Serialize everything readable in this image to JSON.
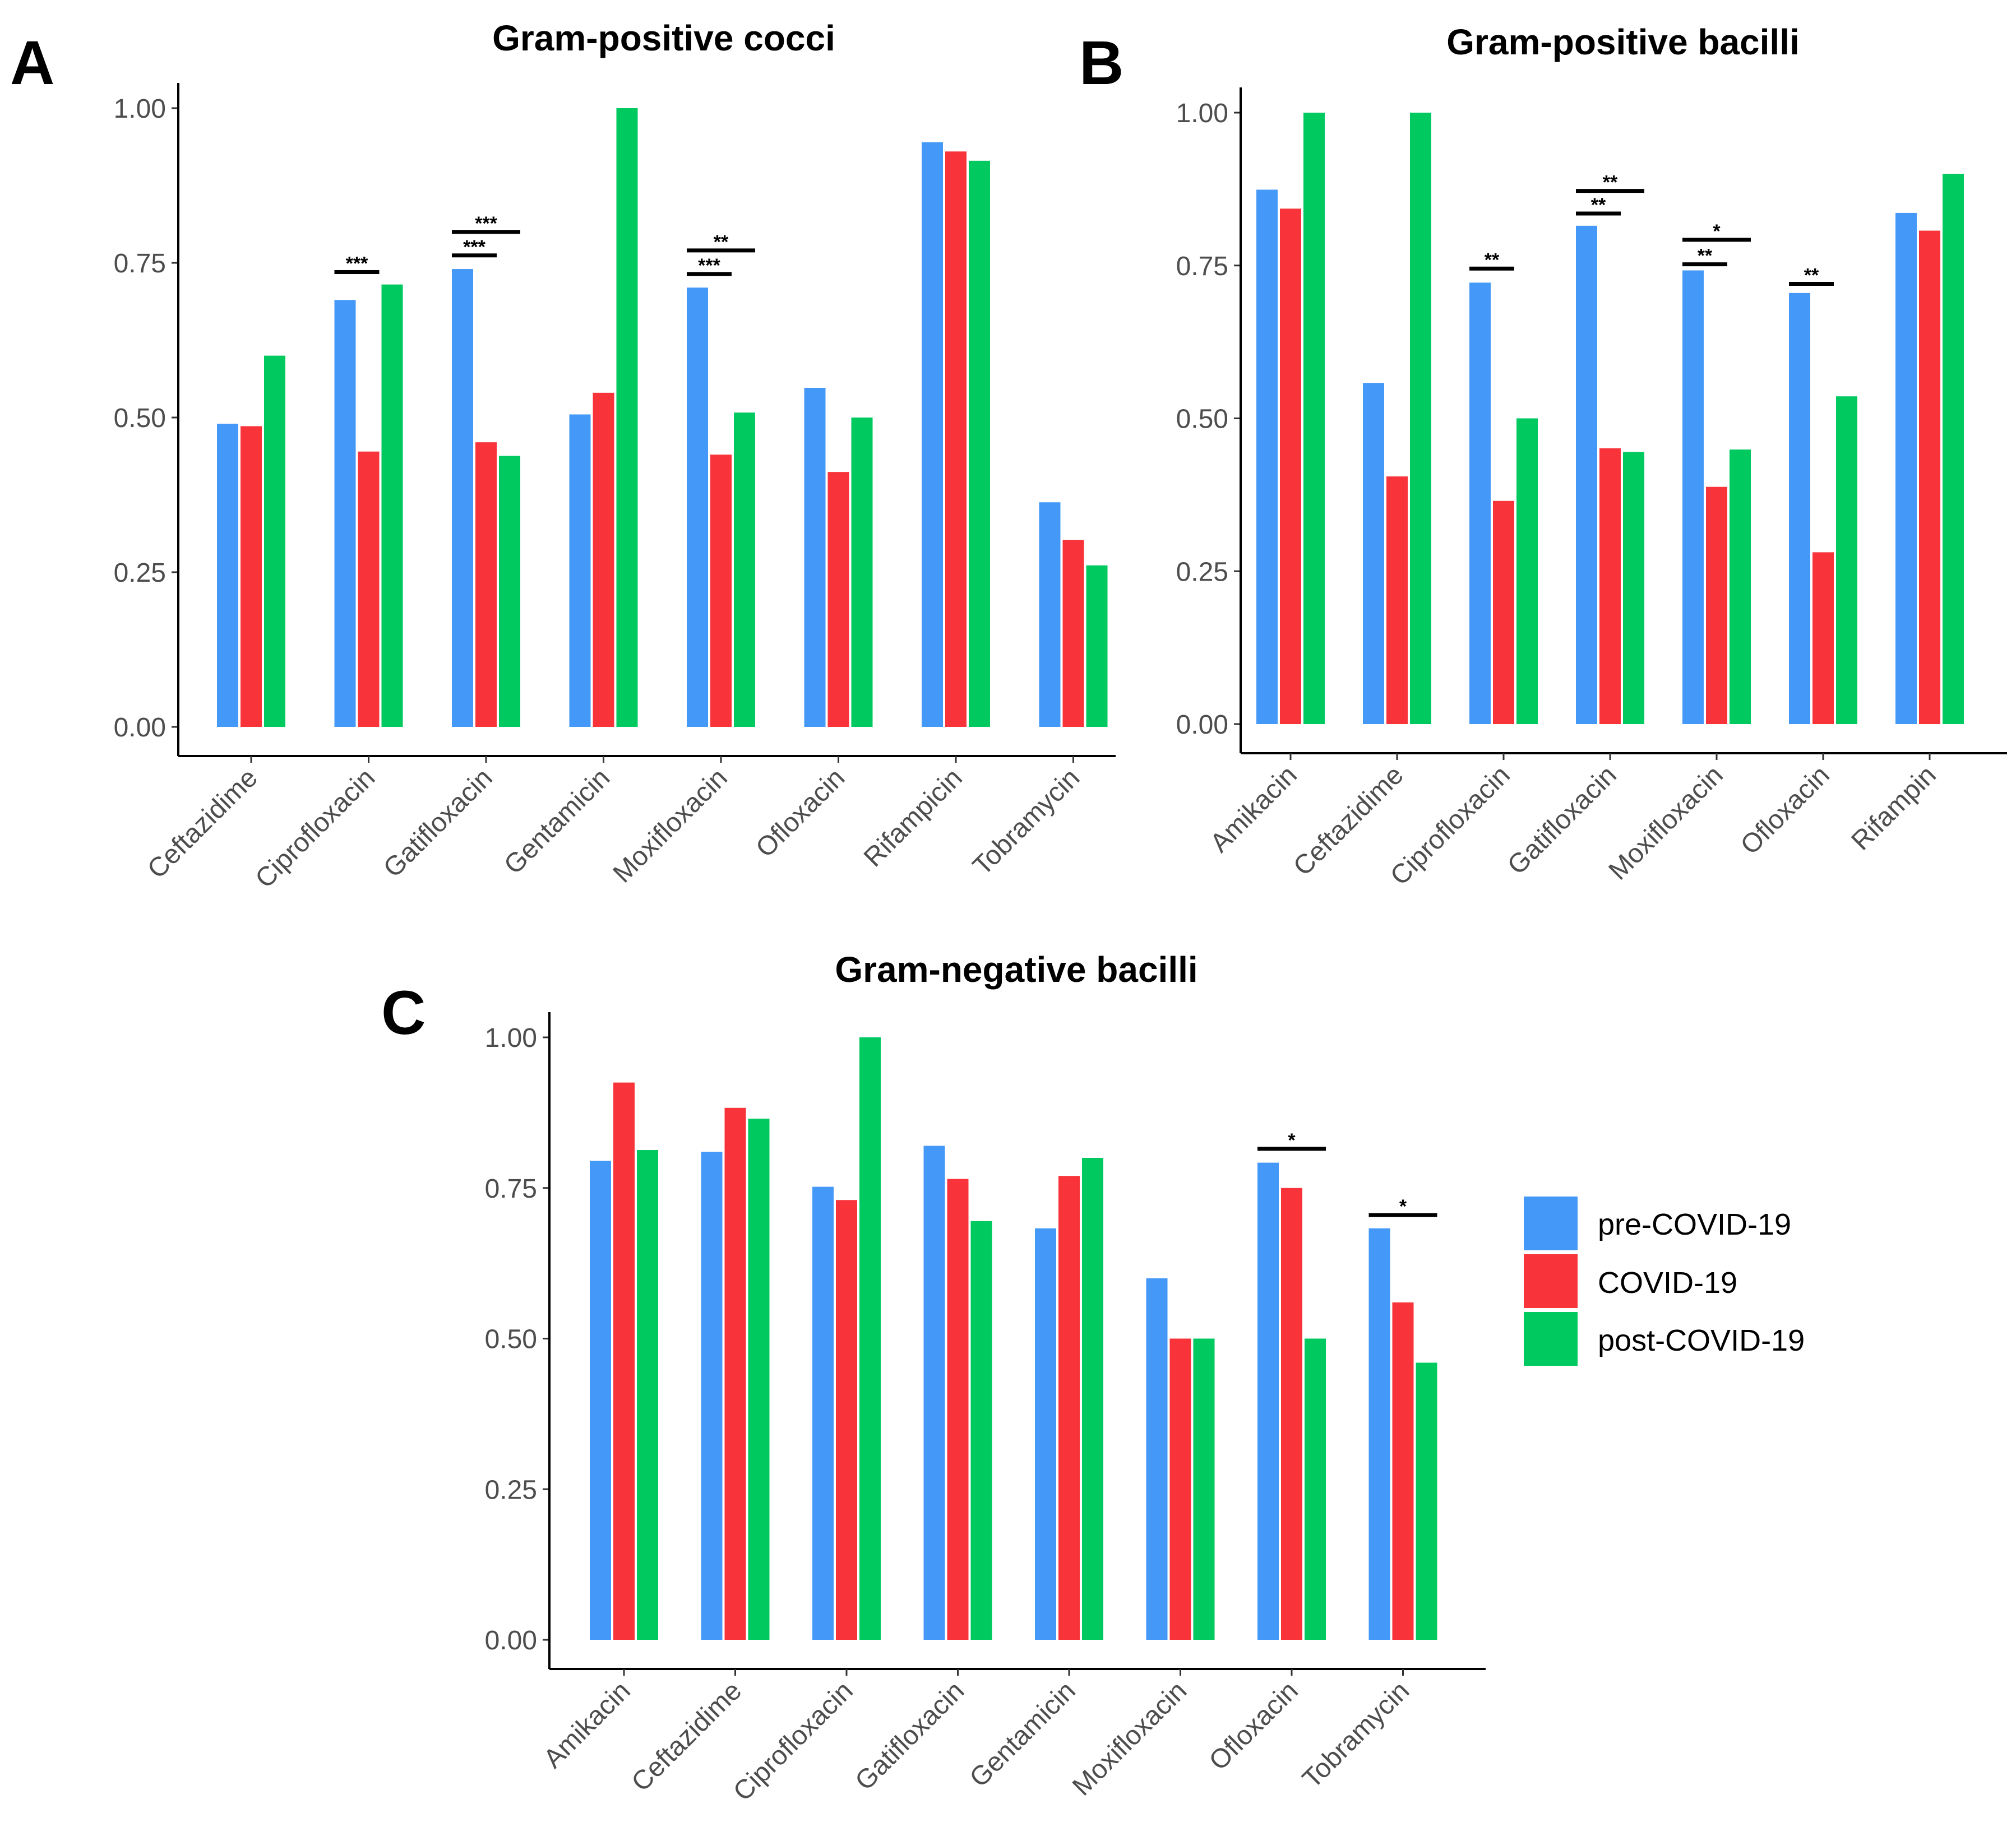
{
  "legend": [
    {
      "label": "pre-COVID-19",
      "color": "#4499F8"
    },
    {
      "label": "COVID-19",
      "color": "#F8333A"
    },
    {
      "label": "post-COVID-19",
      "color": "#00C95F"
    }
  ],
  "chart_data": [
    {
      "type": "bar",
      "panel": "A",
      "title": "Gram-positive cocci",
      "xlabel": "",
      "ylabel": "",
      "ylim": [
        0,
        1
      ],
      "yticks": [
        "0.00",
        "0.25",
        "0.50",
        "0.75",
        "1.00"
      ],
      "ytick_values": [
        0,
        0.25,
        0.5,
        0.75,
        1
      ],
      "categories": [
        "Ceftazidime",
        "Ciprofloxacin",
        "Gatifloxacin",
        "Gentamicin",
        "Moxifloxacin",
        "Ofloxacin",
        "Rifampicin",
        "Tobramycin"
      ],
      "series": [
        {
          "name": "pre-COVID-19",
          "values": [
            0.49,
            0.69,
            0.74,
            0.505,
            0.71,
            0.548,
            0.945,
            0.363
          ]
        },
        {
          "name": "COVID-19",
          "values": [
            0.486,
            0.445,
            0.46,
            0.54,
            0.44,
            0.412,
            0.93,
            0.302
          ]
        },
        {
          "name": "post-COVID-19",
          "values": [
            0.6,
            0.715,
            0.438,
            1.0,
            0.508,
            0.5,
            0.915,
            0.261
          ]
        }
      ],
      "significance": [
        {
          "category": 1,
          "from": 0,
          "to": 1,
          "label": "***",
          "level": 0.735
        },
        {
          "category": 2,
          "from": 0,
          "to": 1,
          "label": "***",
          "level": 0.762
        },
        {
          "category": 2,
          "from": 0,
          "to": 2,
          "label": "***",
          "level": 0.8
        },
        {
          "category": 4,
          "from": 0,
          "to": 1,
          "label": "***",
          "level": 0.732
        },
        {
          "category": 4,
          "from": 0,
          "to": 2,
          "label": "**",
          "level": 0.77
        }
      ]
    },
    {
      "type": "bar",
      "panel": "B",
      "title": "Gram-positive bacilli",
      "xlabel": "",
      "ylabel": "",
      "ylim": [
        0,
        1
      ],
      "yticks": [
        "0.00",
        "0.25",
        "0.50",
        "0.75",
        "1.00"
      ],
      "ytick_values": [
        0,
        0.25,
        0.5,
        0.75,
        1
      ],
      "categories": [
        "Amikacin",
        "Ceftazidime",
        "Ciprofloxacin",
        "Gatifloxacin",
        "Moxifloxacin",
        "Ofloxacin",
        "Rifampin"
      ],
      "series": [
        {
          "name": "pre-COVID-19",
          "values": [
            0.874,
            0.558,
            0.722,
            0.815,
            0.742,
            0.705,
            0.836
          ]
        },
        {
          "name": "COVID-19",
          "values": [
            0.843,
            0.405,
            0.365,
            0.451,
            0.388,
            0.281,
            0.807
          ]
        },
        {
          "name": "post-COVID-19",
          "values": [
            1.0,
            1.0,
            0.5,
            0.445,
            0.449,
            0.536,
            0.9
          ]
        }
      ],
      "significance": [
        {
          "category": 2,
          "from": 0,
          "to": 1,
          "label": "**",
          "level": 0.745
        },
        {
          "category": 3,
          "from": 0,
          "to": 1,
          "label": "**",
          "level": 0.835
        },
        {
          "category": 3,
          "from": 0,
          "to": 2,
          "label": "**",
          "level": 0.872
        },
        {
          "category": 4,
          "from": 0,
          "to": 1,
          "label": "**",
          "level": 0.752
        },
        {
          "category": 4,
          "from": 0,
          "to": 2,
          "label": "*",
          "level": 0.792
        },
        {
          "category": 5,
          "from": 0,
          "to": 1,
          "label": "**",
          "level": 0.72
        }
      ]
    },
    {
      "type": "bar",
      "panel": "C",
      "title": "Gram-negative bacilli",
      "xlabel": "",
      "ylabel": "",
      "ylim": [
        0,
        1
      ],
      "yticks": [
        "0.00",
        "0.25",
        "0.50",
        "0.75",
        "1.00"
      ],
      "ytick_values": [
        0,
        0.25,
        0.5,
        0.75,
        1
      ],
      "categories": [
        "Amikacin",
        "Ceftazidime",
        "Ciprofloxacin",
        "Gatifloxacin",
        "Gentamicin",
        "Moxifloxacin",
        "Ofloxacin",
        "Tobramycin"
      ],
      "series": [
        {
          "name": "pre-COVID-19",
          "values": [
            0.795,
            0.81,
            0.752,
            0.82,
            0.683,
            0.6,
            0.792,
            0.683
          ]
        },
        {
          "name": "COVID-19",
          "values": [
            0.925,
            0.883,
            0.73,
            0.765,
            0.77,
            0.5,
            0.75,
            0.56
          ]
        },
        {
          "name": "post-COVID-19",
          "values": [
            0.813,
            0.865,
            1.0,
            0.695,
            0.8,
            0.5,
            0.5,
            0.46
          ]
        }
      ],
      "significance": [
        {
          "category": 6,
          "from": 0,
          "to": 2,
          "label": "*",
          "level": 0.815
        },
        {
          "category": 7,
          "from": 0,
          "to": 2,
          "label": "*",
          "level": 0.705
        }
      ]
    }
  ]
}
